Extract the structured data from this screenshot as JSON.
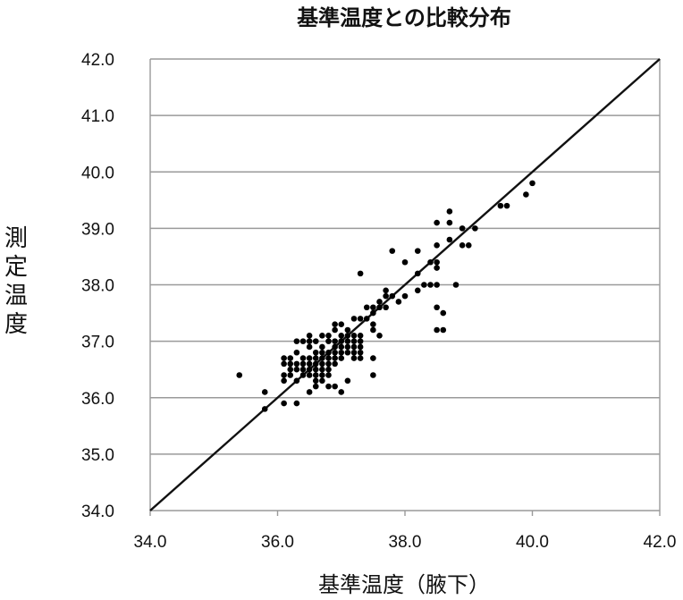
{
  "chart_data": {
    "type": "scatter",
    "title": "基準温度との比較分布",
    "xlabel": "基準温度（腋下）",
    "ylabel": "測定温度",
    "xlim": [
      34.0,
      42.0
    ],
    "ylim": [
      34.0,
      42.0
    ],
    "x_ticks": [
      "34.0",
      "36.0",
      "38.0",
      "40.0",
      "42.0"
    ],
    "y_ticks": [
      "34.0",
      "35.0",
      "36.0",
      "37.0",
      "38.0",
      "39.0",
      "40.0",
      "41.0",
      "42.0"
    ],
    "grid": "horizontal",
    "reference_line": {
      "from": [
        34.0,
        34.0
      ],
      "to": [
        42.0,
        42.0
      ]
    },
    "marker_color": "#000000",
    "points": [
      [
        35.4,
        36.4
      ],
      [
        35.8,
        36.1
      ],
      [
        35.8,
        35.8
      ],
      [
        36.1,
        35.9
      ],
      [
        36.3,
        35.9
      ],
      [
        36.1,
        36.3
      ],
      [
        36.1,
        36.4
      ],
      [
        36.1,
        36.6
      ],
      [
        36.1,
        36.7
      ],
      [
        36.2,
        36.4
      ],
      [
        36.2,
        36.5
      ],
      [
        36.2,
        36.6
      ],
      [
        36.2,
        36.7
      ],
      [
        36.3,
        36.3
      ],
      [
        36.3,
        36.5
      ],
      [
        36.3,
        36.6
      ],
      [
        36.3,
        36.8
      ],
      [
        36.3,
        37.0
      ],
      [
        36.4,
        36.4
      ],
      [
        36.4,
        36.5
      ],
      [
        36.4,
        36.6
      ],
      [
        36.4,
        36.7
      ],
      [
        36.4,
        37.0
      ],
      [
        36.5,
        36.1
      ],
      [
        36.5,
        36.4
      ],
      [
        36.5,
        36.5
      ],
      [
        36.5,
        36.6
      ],
      [
        36.5,
        36.7
      ],
      [
        36.5,
        36.9
      ],
      [
        36.5,
        37.0
      ],
      [
        36.5,
        37.1
      ],
      [
        36.6,
        36.2
      ],
      [
        36.6,
        36.3
      ],
      [
        36.6,
        36.4
      ],
      [
        36.6,
        36.5
      ],
      [
        36.6,
        36.6
      ],
      [
        36.6,
        36.7
      ],
      [
        36.6,
        36.8
      ],
      [
        36.6,
        37.0
      ],
      [
        36.7,
        36.3
      ],
      [
        36.7,
        36.4
      ],
      [
        36.7,
        36.5
      ],
      [
        36.7,
        36.6
      ],
      [
        36.7,
        36.7
      ],
      [
        36.7,
        36.8
      ],
      [
        36.7,
        36.9
      ],
      [
        36.7,
        37.1
      ],
      [
        36.8,
        36.2
      ],
      [
        36.8,
        36.4
      ],
      [
        36.8,
        36.5
      ],
      [
        36.8,
        36.6
      ],
      [
        36.8,
        36.7
      ],
      [
        36.8,
        36.8
      ],
      [
        36.8,
        37.0
      ],
      [
        36.8,
        37.1
      ],
      [
        36.9,
        36.2
      ],
      [
        36.9,
        36.6
      ],
      [
        36.9,
        36.7
      ],
      [
        36.9,
        36.8
      ],
      [
        36.9,
        36.9
      ],
      [
        36.9,
        37.0
      ],
      [
        36.9,
        37.2
      ],
      [
        36.9,
        37.3
      ],
      [
        37.0,
        36.1
      ],
      [
        37.0,
        36.7
      ],
      [
        37.0,
        36.8
      ],
      [
        37.0,
        36.9
      ],
      [
        37.0,
        37.0
      ],
      [
        37.0,
        37.1
      ],
      [
        37.0,
        37.3
      ],
      [
        37.1,
        36.3
      ],
      [
        37.1,
        36.8
      ],
      [
        37.1,
        36.9
      ],
      [
        37.1,
        37.0
      ],
      [
        37.1,
        37.1
      ],
      [
        37.1,
        37.2
      ],
      [
        37.2,
        36.7
      ],
      [
        37.2,
        36.8
      ],
      [
        37.2,
        36.9
      ],
      [
        37.2,
        37.0
      ],
      [
        37.2,
        37.1
      ],
      [
        37.2,
        37.4
      ],
      [
        37.3,
        36.7
      ],
      [
        37.3,
        36.8
      ],
      [
        37.3,
        36.9
      ],
      [
        37.3,
        37.0
      ],
      [
        37.3,
        37.1
      ],
      [
        37.3,
        37.4
      ],
      [
        37.3,
        38.2
      ],
      [
        37.4,
        37.4
      ],
      [
        37.4,
        37.6
      ],
      [
        37.5,
        36.4
      ],
      [
        37.5,
        36.7
      ],
      [
        37.5,
        37.2
      ],
      [
        37.5,
        37.3
      ],
      [
        37.5,
        37.5
      ],
      [
        37.5,
        37.6
      ],
      [
        37.6,
        37.1
      ],
      [
        37.6,
        37.6
      ],
      [
        37.6,
        37.7
      ],
      [
        37.7,
        37.6
      ],
      [
        37.7,
        37.8
      ],
      [
        37.7,
        37.9
      ],
      [
        37.8,
        37.8
      ],
      [
        37.8,
        38.6
      ],
      [
        37.9,
        37.7
      ],
      [
        38.0,
        37.8
      ],
      [
        38.0,
        38.4
      ],
      [
        38.2,
        37.9
      ],
      [
        38.2,
        38.2
      ],
      [
        38.2,
        38.6
      ],
      [
        38.3,
        38.0
      ],
      [
        38.4,
        38.0
      ],
      [
        38.4,
        38.4
      ],
      [
        38.5,
        37.6
      ],
      [
        38.5,
        37.2
      ],
      [
        38.5,
        38.0
      ],
      [
        38.5,
        38.3
      ],
      [
        38.5,
        38.4
      ],
      [
        38.5,
        38.7
      ],
      [
        38.5,
        39.1
      ],
      [
        38.6,
        37.2
      ],
      [
        38.6,
        37.5
      ],
      [
        38.7,
        38.8
      ],
      [
        38.7,
        39.1
      ],
      [
        38.7,
        39.3
      ],
      [
        38.8,
        38.0
      ],
      [
        38.9,
        38.7
      ],
      [
        38.9,
        39.0
      ],
      [
        39.0,
        38.7
      ],
      [
        39.1,
        39.0
      ],
      [
        39.5,
        39.4
      ],
      [
        39.6,
        39.4
      ],
      [
        39.9,
        39.6
      ],
      [
        40.0,
        39.8
      ]
    ]
  }
}
